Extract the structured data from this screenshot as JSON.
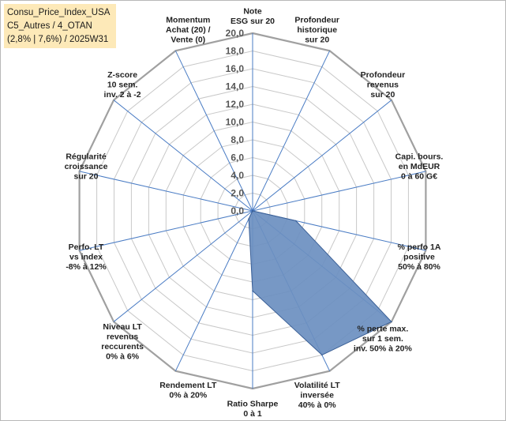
{
  "info": {
    "line1": "Consu_Price_Index_USA",
    "line2": "C5_Autres / 4_OTAN",
    "line3": "(2,8% | 7,6%) / 2025W31"
  },
  "colors": {
    "fill": "#6b8fc0",
    "stroke": "#3a5f96",
    "axis": "#4a7cc4",
    "grid": "#c8c8c8"
  },
  "chart_data": {
    "type": "radar",
    "title": "",
    "rlim": [
      0,
      20
    ],
    "grid": true,
    "tick_values": [
      0,
      2,
      4,
      6,
      8,
      10,
      12,
      14,
      16,
      18,
      20
    ],
    "tick_labels": [
      "0,0",
      "2,0",
      "4,0",
      "6,0",
      "8,0",
      "10,0",
      "12,0",
      "14,0",
      "16,0",
      "18,0",
      "20,0"
    ],
    "axes": [
      {
        "name": "Note ESG sur 20",
        "lines": [
          "Note",
          "ESG sur 20"
        ],
        "value": 0
      },
      {
        "name": "Profondeur historique sur 20",
        "lines": [
          "Profondeur",
          "historique",
          "sur 20"
        ],
        "value": 0
      },
      {
        "name": "Profondeur revenus sur 20",
        "lines": [
          "Profondeur",
          "revenus",
          "sur 20"
        ],
        "value": 0
      },
      {
        "name": "Capi. bours. en MdEUR 0 à 60 G€",
        "lines": [
          "Capi. bours.",
          "en MdEUR",
          "0 à 60 G€"
        ],
        "value": 0
      },
      {
        "name": "% perfo 1A positive 50% à 80%",
        "lines": [
          "% perfo 1A",
          "positive",
          "50% à 80%"
        ],
        "value": 5
      },
      {
        "name": "% perte max. sur 1 sem. inv. 50% à 20%",
        "lines": [
          "% perte max.",
          "sur 1 sem.",
          "inv. 50% à 20%"
        ],
        "value": 20
      },
      {
        "name": "Volatilité LT inversée 40% à 0%",
        "lines": [
          "Volatilité LT",
          "inversée",
          "40% à 0%"
        ],
        "value": 18
      },
      {
        "name": "Ratio Sharpe 0 à 1",
        "lines": [
          "Ratio Sharpe",
          "0 à 1"
        ],
        "value": 9
      },
      {
        "name": "Rendement LT 0% à 20%",
        "lines": [
          "Rendement LT",
          "0% à 20%"
        ],
        "value": 1
      },
      {
        "name": "Niveau LT revenus reccurents 0% à 6%",
        "lines": [
          "Niveau LT",
          "revenus",
          "reccurents",
          "0% à 6%"
        ],
        "value": 0
      },
      {
        "name": "Perfo. LT vs index -8% à 12%",
        "lines": [
          "Perfo. LT",
          "vs index",
          "-8% à 12%"
        ],
        "value": 0
      },
      {
        "name": "Régularité croissance sur 20",
        "lines": [
          "Régularité",
          "croissance",
          "sur 20"
        ],
        "value": 0
      },
      {
        "name": "Z-score 10 sem. inv. 2 à -2",
        "lines": [
          "Z-score",
          "10 sem.",
          "inv. 2 à -2"
        ],
        "value": 0
      },
      {
        "name": "Momentum Achat (20) / Vente (0)",
        "lines": [
          "Momentum",
          "Achat (20) /",
          "Vente (0)"
        ],
        "value": 0
      }
    ]
  }
}
